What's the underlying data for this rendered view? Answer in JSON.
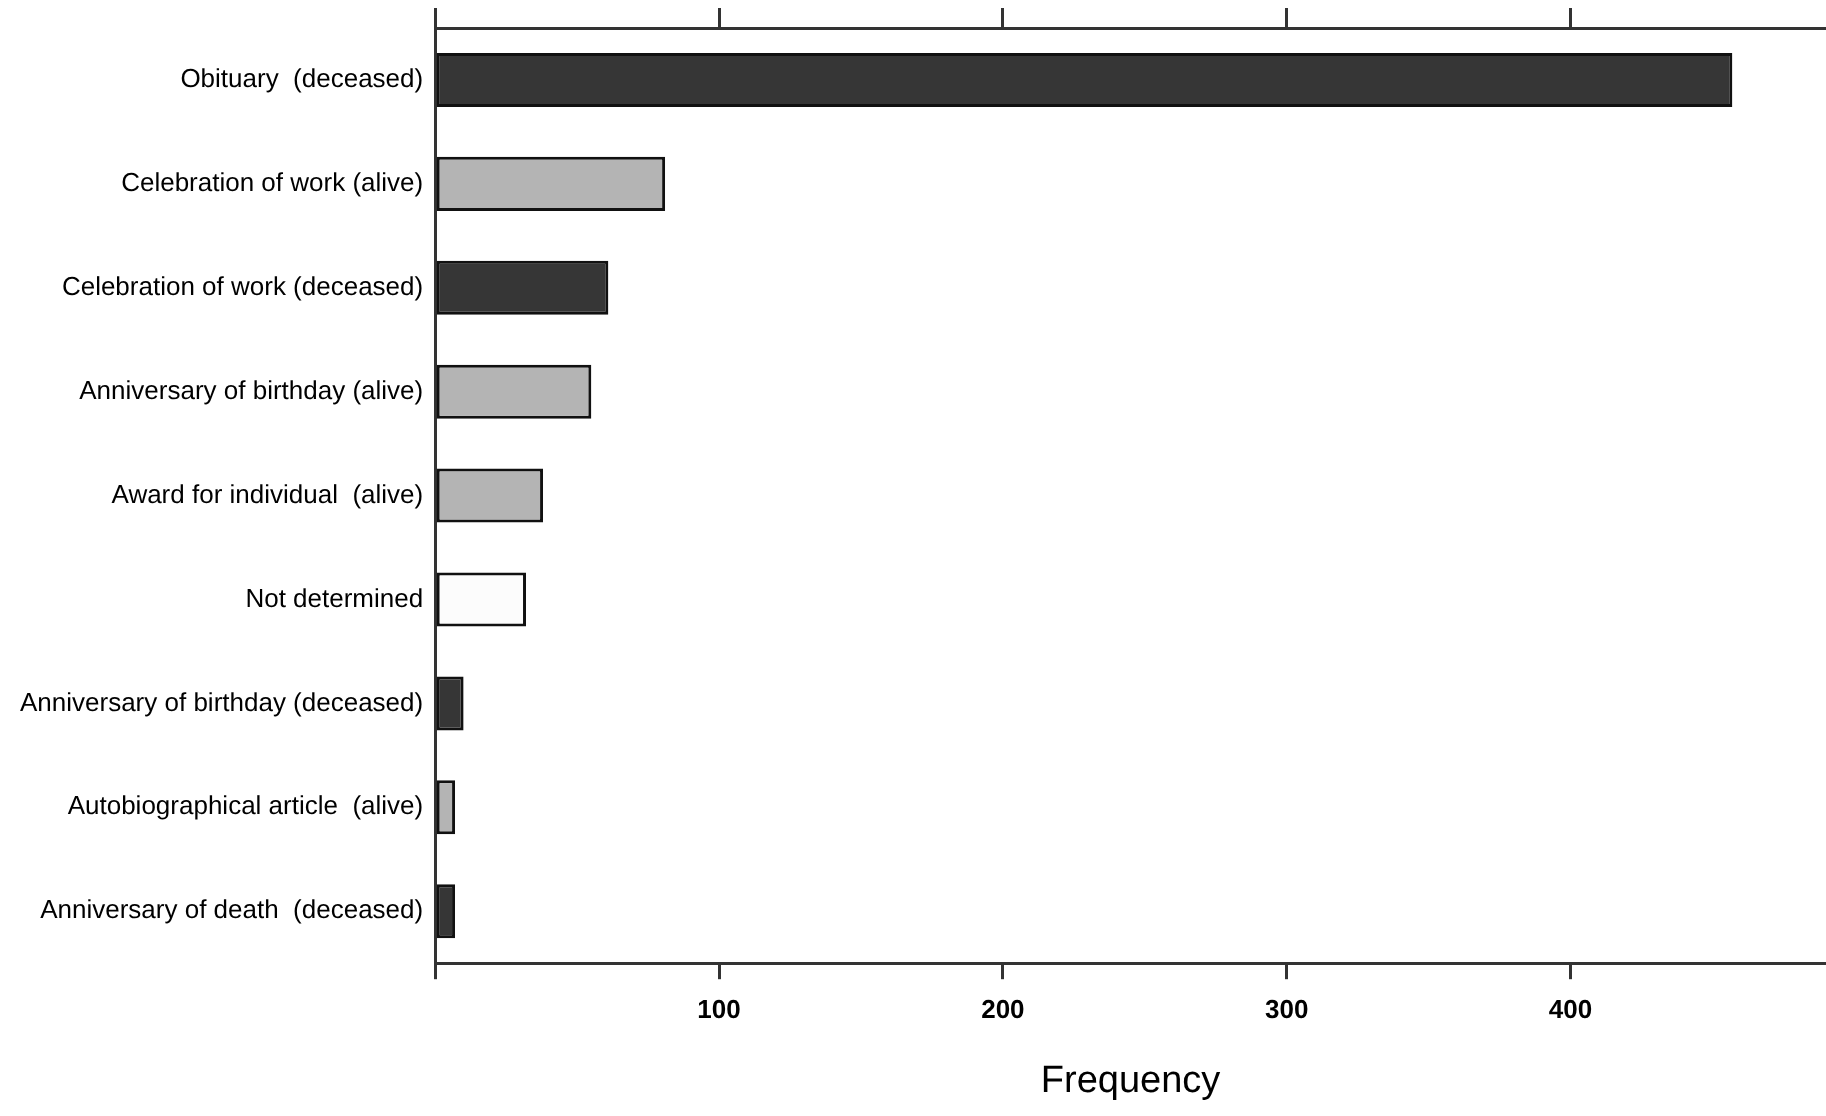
{
  "chart_data": {
    "type": "bar",
    "orientation": "horizontal",
    "xlabel": "Frequency",
    "categories": [
      "Obituary  (deceased)",
      "Celebration of work (alive)",
      "Celebration of work (deceased)",
      "Anniversary of birthday (alive)",
      "Award for individual  (alive)",
      "Not determined",
      "Anniversary of birthday (deceased)",
      "Autobiographical article  (alive)",
      "Anniversary of death  (deceased)"
    ],
    "values": [
      457,
      81,
      61,
      55,
      38,
      32,
      10,
      7,
      7
    ],
    "colors": [
      "#363636",
      "#b4b4b4",
      "#363636",
      "#b4b4b4",
      "#b4b4b4",
      "#fcfcfc",
      "#363636",
      "#b4b4b4",
      "#363636"
    ],
    "xlim": [
      0,
      490
    ],
    "xticks": [
      {
        "value": 0,
        "label": null
      },
      100,
      200,
      300,
      400
    ],
    "grid": false,
    "legend": false
  }
}
